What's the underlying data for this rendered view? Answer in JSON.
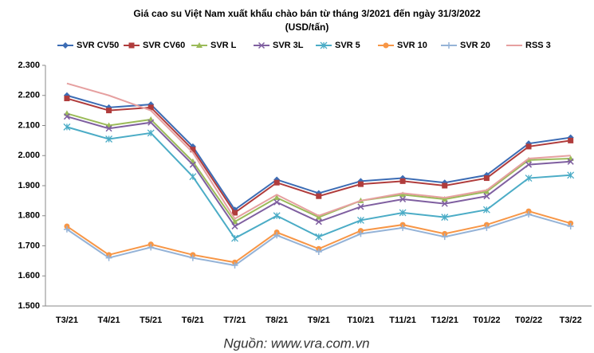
{
  "chart_data": {
    "type": "line",
    "title": "Giá cao su Việt Nam xuất khẩu chào bán từ tháng 3/2021 đến ngày 31/3/2022",
    "subtitle": "(USD/tấn)",
    "source": "Nguồn: www.vra.com.vn",
    "categories": [
      "T3/21",
      "T4/21",
      "T5/21",
      "T6/21",
      "T7/21",
      "T8/21",
      "T9/21",
      "T10/21",
      "T11/21",
      "T12/21",
      "T01/22",
      "T02/22",
      "T3/22"
    ],
    "ylim": [
      1500,
      2300
    ],
    "yticks": [
      {
        "value": 1500,
        "label": "1.500"
      },
      {
        "value": 1600,
        "label": "1.600"
      },
      {
        "value": 1700,
        "label": "1.700"
      },
      {
        "value": 1800,
        "label": "1.800"
      },
      {
        "value": 1900,
        "label": "1.900"
      },
      {
        "value": 2000,
        "label": "2.000"
      },
      {
        "value": 2100,
        "label": "2.100"
      },
      {
        "value": 2200,
        "label": "2.200"
      },
      {
        "value": 2300,
        "label": "2.300"
      }
    ],
    "grid": false,
    "legend": "top",
    "series": [
      {
        "name": "SVR CV50",
        "color": "#3c6cb4",
        "marker": "diamond",
        "values": [
          2200,
          2160,
          2170,
          2030,
          1820,
          1920,
          1875,
          1915,
          1925,
          1910,
          1935,
          2040,
          2060
        ]
      },
      {
        "name": "SVR CV60",
        "color": "#b03c3c",
        "marker": "square",
        "values": [
          2190,
          2150,
          2160,
          2020,
          1810,
          1910,
          1865,
          1905,
          1915,
          1900,
          1925,
          2030,
          2050
        ]
      },
      {
        "name": "SVR L",
        "color": "#9bbb59",
        "marker": "triangle",
        "values": [
          2140,
          2100,
          2120,
          1980,
          1780,
          1860,
          1795,
          1850,
          1870,
          1855,
          1880,
          1985,
          1990
        ]
      },
      {
        "name": "SVR 3L",
        "color": "#7f5fa0",
        "marker": "x",
        "values": [
          2130,
          2090,
          2110,
          1970,
          1765,
          1845,
          1780,
          1830,
          1855,
          1840,
          1865,
          1970,
          1980
        ]
      },
      {
        "name": "SVR 5",
        "color": "#4bacc6",
        "marker": "star",
        "values": [
          2095,
          2055,
          2075,
          1930,
          1725,
          1800,
          1730,
          1785,
          1810,
          1795,
          1820,
          1925,
          1935
        ]
      },
      {
        "name": "SVR 10",
        "color": "#f79646",
        "marker": "circle",
        "values": [
          1765,
          1670,
          1705,
          1670,
          1645,
          1745,
          1690,
          1750,
          1770,
          1740,
          1770,
          1815,
          1775
        ]
      },
      {
        "name": "SVR 20",
        "color": "#95b3d7",
        "marker": "plus",
        "values": [
          1755,
          1660,
          1695,
          1660,
          1635,
          1735,
          1680,
          1740,
          1760,
          1730,
          1760,
          1805,
          1765
        ]
      },
      {
        "name": "RSS 3",
        "color": "#e6a0a0",
        "marker": "none",
        "values": [
          2240,
          2200,
          2150,
          2010,
          1790,
          1870,
          1800,
          1850,
          1875,
          1860,
          1885,
          1990,
          2000
        ]
      }
    ]
  }
}
